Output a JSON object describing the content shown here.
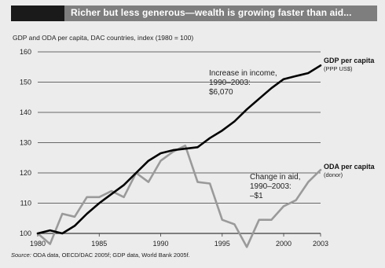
{
  "header": {
    "title": "Richer but less generous—wealth is growing faster than aid..."
  },
  "subtitle": "GDP and ODA per capita, DAC countries, index (1980 = 100)",
  "source": {
    "label": "Source:",
    "text": " ODA data, OECD/DAC 2005f; GDP data, World Bank 2005f."
  },
  "colors": {
    "gdp_line": "#000000",
    "oda_line": "#9a9a9a",
    "grid": "#3c3c3c",
    "background": "#ececec",
    "title_bar": "#7e7e7e"
  },
  "chart_data": {
    "type": "line",
    "xlim": [
      1980,
      2003
    ],
    "ylim": [
      100,
      160
    ],
    "y_ticks": [
      100,
      110,
      120,
      130,
      140,
      150,
      160
    ],
    "x_ticks": [
      1980,
      1985,
      1990,
      1995,
      2000,
      2003
    ],
    "grid": "horizontal",
    "legend": "right-inline",
    "series": [
      {
        "name": "GDP per capita",
        "subname": "(PPP US$)",
        "x": [
          1980,
          1981,
          1982,
          1983,
          1984,
          1985,
          1986,
          1987,
          1988,
          1989,
          1990,
          1991,
          1992,
          1993,
          1994,
          1995,
          1996,
          1997,
          1998,
          1999,
          2000,
          2001,
          2002,
          2003
        ],
        "values": [
          100,
          101,
          100,
          102.5,
          106.5,
          110,
          113,
          116,
          120,
          124,
          126.5,
          127.5,
          128,
          128.5,
          131.5,
          134,
          137,
          141,
          144.5,
          148,
          151,
          152,
          153,
          155.5
        ]
      },
      {
        "name": "ODA per capita",
        "subname": "(donor)",
        "x": [
          1980,
          1981,
          1982,
          1983,
          1984,
          1985,
          1986,
          1987,
          1988,
          1989,
          1990,
          1991,
          1992,
          1993,
          1994,
          1995,
          1996,
          1997,
          1998,
          1999,
          2000,
          2001,
          2002,
          2003
        ],
        "values": [
          100,
          96.5,
          106.5,
          105.5,
          112,
          112,
          114,
          112,
          120,
          117,
          124,
          127,
          129,
          117,
          116.5,
          104.5,
          103,
          95.5,
          104.5,
          104.5,
          109,
          111,
          117,
          121
        ]
      }
    ],
    "annotations": [
      {
        "lines": [
          "Increase in income,",
          "1990–2003:",
          "$6,070"
        ]
      },
      {
        "lines": [
          "Change in aid,",
          "1990–2003:",
          "–$1"
        ]
      }
    ]
  }
}
